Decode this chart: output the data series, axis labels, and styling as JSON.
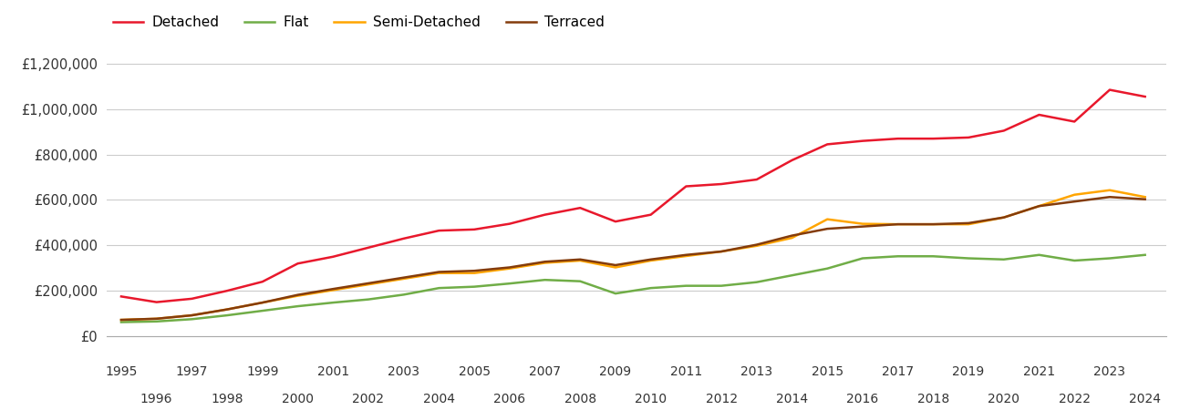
{
  "series": {
    "Detached": {
      "color": "#e8182c",
      "years": [
        1995,
        1996,
        1997,
        1998,
        1999,
        2000,
        2001,
        2002,
        2003,
        2004,
        2005,
        2006,
        2007,
        2008,
        2009,
        2010,
        2011,
        2012,
        2013,
        2014,
        2015,
        2016,
        2017,
        2018,
        2019,
        2020,
        2021,
        2022,
        2023,
        2024
      ],
      "values": [
        175000,
        150000,
        165000,
        200000,
        240000,
        320000,
        350000,
        390000,
        430000,
        465000,
        470000,
        495000,
        535000,
        565000,
        505000,
        535000,
        660000,
        670000,
        690000,
        775000,
        845000,
        860000,
        870000,
        870000,
        875000,
        905000,
        975000,
        945000,
        1085000,
        1055000
      ]
    },
    "Flat": {
      "color": "#70ad47",
      "years": [
        1995,
        1996,
        1997,
        1998,
        1999,
        2000,
        2001,
        2002,
        2003,
        2004,
        2005,
        2006,
        2007,
        2008,
        2009,
        2010,
        2011,
        2012,
        2013,
        2014,
        2015,
        2016,
        2017,
        2018,
        2019,
        2020,
        2021,
        2022,
        2023,
        2024
      ],
      "values": [
        62000,
        65000,
        75000,
        92000,
        112000,
        132000,
        148000,
        162000,
        183000,
        212000,
        218000,
        232000,
        248000,
        242000,
        188000,
        212000,
        222000,
        222000,
        238000,
        268000,
        298000,
        343000,
        352000,
        352000,
        343000,
        338000,
        358000,
        333000,
        343000,
        358000
      ]
    },
    "Semi-Detached": {
      "color": "#ffa500",
      "years": [
        1995,
        1996,
        1997,
        1998,
        1999,
        2000,
        2001,
        2002,
        2003,
        2004,
        2005,
        2006,
        2007,
        2008,
        2009,
        2010,
        2011,
        2012,
        2013,
        2014,
        2015,
        2016,
        2017,
        2018,
        2019,
        2020,
        2021,
        2022,
        2023,
        2024
      ],
      "values": [
        72000,
        77000,
        92000,
        118000,
        148000,
        178000,
        203000,
        228000,
        253000,
        278000,
        278000,
        298000,
        323000,
        333000,
        303000,
        333000,
        353000,
        373000,
        398000,
        433000,
        515000,
        495000,
        493000,
        493000,
        493000,
        523000,
        573000,
        623000,
        643000,
        613000
      ]
    },
    "Terraced": {
      "color": "#843c0c",
      "years": [
        1995,
        1996,
        1997,
        1998,
        1999,
        2000,
        2001,
        2002,
        2003,
        2004,
        2005,
        2006,
        2007,
        2008,
        2009,
        2010,
        2011,
        2012,
        2013,
        2014,
        2015,
        2016,
        2017,
        2018,
        2019,
        2020,
        2021,
        2022,
        2023,
        2024
      ],
      "values": [
        72000,
        77000,
        92000,
        118000,
        148000,
        182000,
        208000,
        233000,
        258000,
        283000,
        288000,
        303000,
        328000,
        338000,
        313000,
        338000,
        358000,
        373000,
        403000,
        443000,
        473000,
        483000,
        493000,
        493000,
        498000,
        523000,
        573000,
        593000,
        613000,
        603000
      ]
    }
  },
  "ylim": [
    0,
    1300000
  ],
  "yticks": [
    0,
    200000,
    400000,
    600000,
    800000,
    1000000,
    1200000
  ],
  "ytick_labels": [
    "£0",
    "£200,000",
    "£400,000",
    "£600,000",
    "£800,000",
    "£1,000,000",
    "£1,200,000"
  ],
  "background_color": "#ffffff",
  "grid_color": "#cccccc",
  "legend_order": [
    "Detached",
    "Flat",
    "Semi-Detached",
    "Terraced"
  ],
  "xlim_left": 1994.6,
  "xlim_right": 2024.6
}
